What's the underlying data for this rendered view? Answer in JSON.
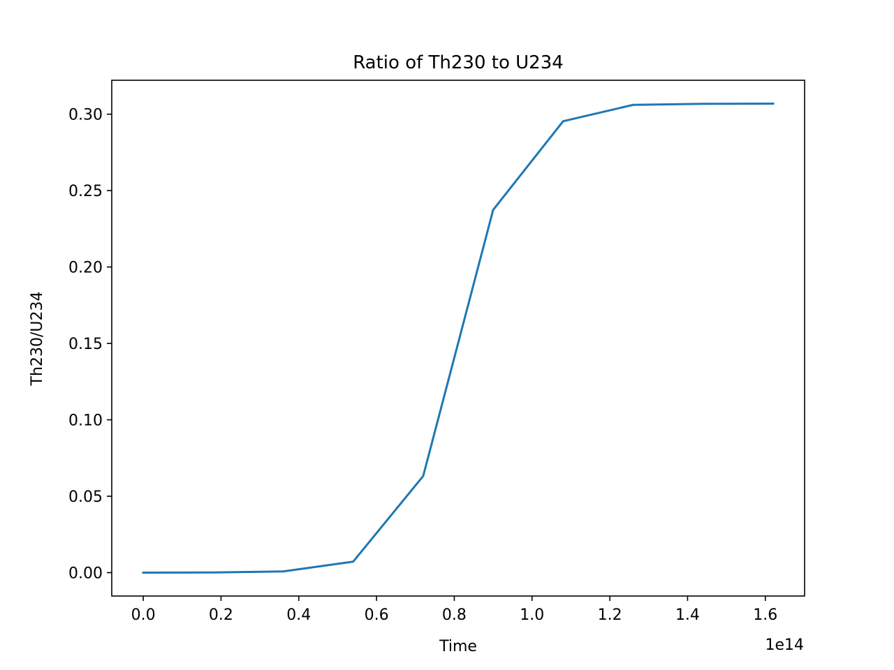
{
  "chart_data": {
    "type": "line",
    "title": "Ratio of Th230 to U234",
    "xlabel": "Time",
    "ylabel": "Th230/U234",
    "x_offset_label": "1e14",
    "x": [
      0,
      18000000000000,
      36000000000000,
      54000000000000,
      72000000000000,
      90000000000000,
      108000000000000,
      126000000000000,
      144000000000000,
      162000000000000
    ],
    "series": [
      {
        "color": "#1f77b4",
        "values": [
          0.0,
          0.0001,
          0.0008,
          0.0072,
          0.0632,
          0.2374,
          0.2954,
          0.3061,
          0.3068,
          0.3069
        ]
      }
    ],
    "xlim": [
      -8100000000000,
      170100000000000
    ],
    "ylim": [
      -0.0153,
      0.3222
    ],
    "xticks": [
      0,
      0.2,
      0.4,
      0.6,
      0.8,
      1.0,
      1.2,
      1.4,
      1.6
    ],
    "xtick_labels": [
      "0.0",
      "0.2",
      "0.4",
      "0.6",
      "0.8",
      "1.0",
      "1.2",
      "1.4",
      "1.6"
    ],
    "yticks": [
      0.0,
      0.05,
      0.1,
      0.15,
      0.2,
      0.25,
      0.3
    ],
    "ytick_labels": [
      "0.00",
      "0.05",
      "0.10",
      "0.15",
      "0.20",
      "0.25",
      "0.30"
    ],
    "grid": false,
    "legend": false
  }
}
